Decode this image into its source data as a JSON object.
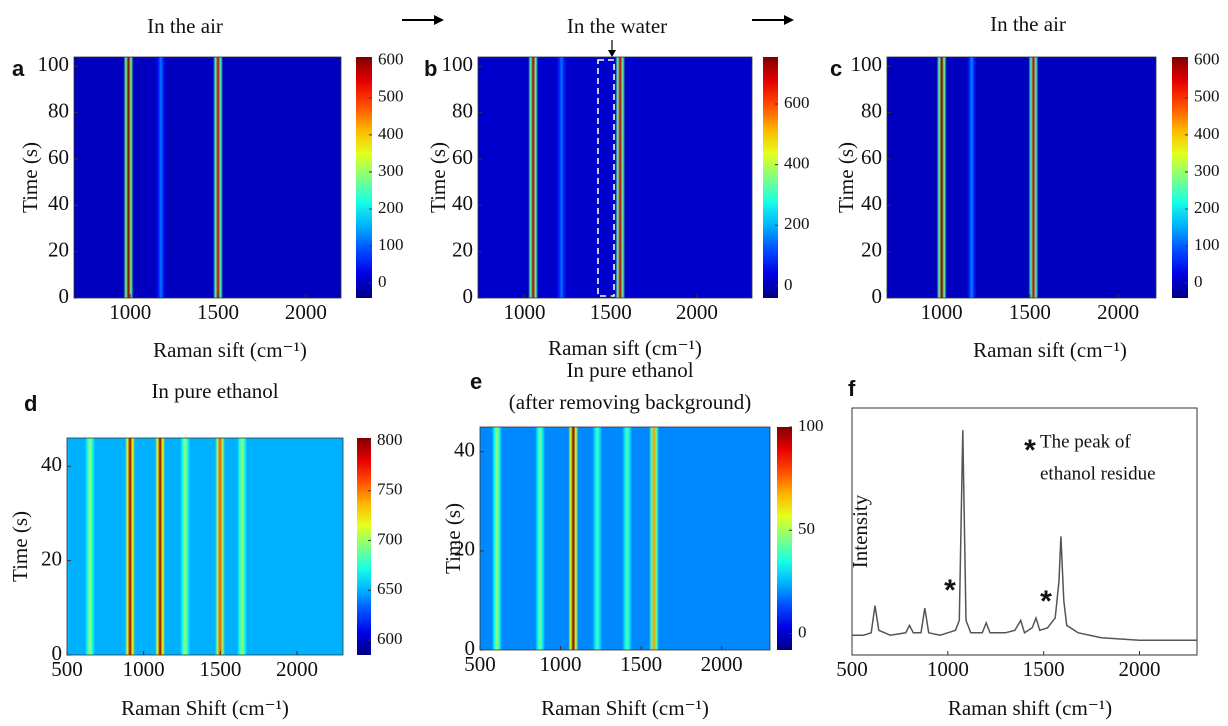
{
  "chart_data": [
    {
      "type": "heatmap",
      "label": "a",
      "title": "In the air",
      "x_label": "Raman sift (cm⁻¹)",
      "y_label": "Time (s)",
      "colormap": "jet",
      "xlim": [
        680,
        2200
      ],
      "xticks": [
        1000,
        1500,
        2000
      ],
      "ylim": [
        0,
        104
      ],
      "yticks": [
        0,
        20,
        40,
        60,
        80,
        100
      ],
      "clim": [
        -40,
        610
      ],
      "cticks": [
        0,
        100,
        200,
        300,
        400,
        500,
        600
      ],
      "background": 0,
      "x": [
        990,
        1175,
        1500
      ],
      "values": [
        610,
        120,
        560
      ]
    },
    {
      "type": "heatmap",
      "label": "b",
      "title": "In the water",
      "x_label": "Raman sift (cm⁻¹)",
      "y_label": "Time (s)",
      "colormap": "jet",
      "xlim": [
        730,
        2320
      ],
      "xticks": [
        1000,
        1500,
        2000
      ],
      "ylim": [
        0,
        104
      ],
      "yticks": [
        0,
        20,
        40,
        60,
        80,
        100
      ],
      "clim": [
        -40,
        755
      ],
      "cticks": [
        0,
        200,
        400,
        600
      ],
      "background": 20,
      "x": [
        1050,
        1215,
        1555
      ],
      "values": [
        720,
        150,
        700
      ]
    },
    {
      "type": "heatmap",
      "label": "c",
      "title": "In the air",
      "x_label": "Raman sift (cm⁻¹)",
      "y_label": "Time (s)",
      "colormap": "jet",
      "xlim": [
        690,
        2215
      ],
      "xticks": [
        1000,
        1500,
        2000
      ],
      "ylim": [
        0,
        104
      ],
      "yticks": [
        0,
        20,
        40,
        60,
        80,
        100
      ],
      "clim": [
        -40,
        610
      ],
      "cticks": [
        0,
        100,
        200,
        300,
        400,
        500,
        600
      ],
      "background": 0,
      "x": [
        1000,
        1170,
        1520
      ],
      "values": [
        610,
        130,
        560
      ]
    },
    {
      "type": "heatmap",
      "label": "d",
      "title": "In pure ethanol",
      "x_label": "Raman Shift (cm⁻¹)",
      "y_label": "Time (s)",
      "colormap": "jet",
      "xlim": [
        500,
        2300
      ],
      "xticks": [
        500,
        1000,
        1500,
        2000
      ],
      "ylim": [
        0,
        46
      ],
      "yticks": [
        0,
        20,
        40
      ],
      "clim": [
        585,
        803
      ],
      "cticks": [
        600,
        650,
        700,
        750,
        800
      ],
      "background": 650,
      "x": [
        650,
        911,
        1107,
        1270,
        1498,
        1642
      ],
      "values": [
        700,
        800,
        800,
        700,
        760,
        700
      ]
    },
    {
      "type": "heatmap",
      "label": "e",
      "title": "In pure ethanol",
      "subtitle": "(after removing background)",
      "x_label": "Raman Shift (cm⁻¹)",
      "y_label": "Time (s)",
      "colormap": "jet",
      "xlim": [
        500,
        2300
      ],
      "xticks": [
        500,
        1000,
        1500,
        2000
      ],
      "ylim": [
        0,
        45
      ],
      "yticks": [
        0,
        20,
        40
      ],
      "clim": [
        -8,
        100
      ],
      "cticks": [
        0,
        50,
        100
      ],
      "background": 20,
      "x": [
        605,
        873,
        1079,
        1228,
        1413,
        1580
      ],
      "values": [
        50,
        45,
        100,
        40,
        42,
        70
      ]
    },
    {
      "type": "line",
      "label": "f",
      "x_label": "Raman shift (cm⁻¹)",
      "y_label": "Intensity",
      "color": "#555555",
      "xlim": [
        500,
        2300
      ],
      "xticks": [
        500,
        1000,
        1500,
        2000
      ],
      "ylim": [
        0,
        100
      ],
      "annotations": [
        "*",
        "*",
        "*",
        "The peak of",
        "ethanol residue"
      ],
      "x": [
        500,
        560,
        600,
        620,
        640,
        700,
        780,
        800,
        820,
        860,
        880,
        900,
        960,
        1000,
        1040,
        1060,
        1078,
        1095,
        1120,
        1180,
        1200,
        1220,
        1300,
        1350,
        1380,
        1400,
        1440,
        1460,
        1480,
        1520,
        1560,
        1580,
        1590,
        1605,
        1620,
        1680,
        1800,
        2000,
        2200,
        2300
      ],
      "values": [
        8,
        8,
        9,
        20,
        10,
        8,
        9,
        12,
        9,
        9,
        19,
        9,
        8,
        9,
        10,
        14,
        91,
        14,
        9,
        9,
        13,
        9,
        9,
        10,
        14,
        9,
        11,
        15,
        10,
        11,
        15,
        30,
        48,
        22,
        12,
        9,
        7,
        6,
        6,
        6
      ]
    }
  ]
}
